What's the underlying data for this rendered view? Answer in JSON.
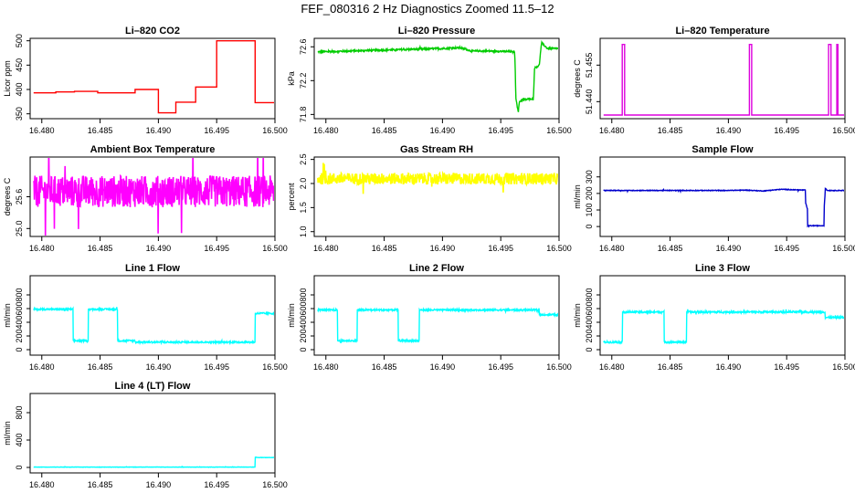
{
  "title": "FEF_080316  2 Hz Diagnostics Zoomed 11.5–12",
  "chart_data": [
    {
      "type": "line",
      "title": "Li–820 CO2",
      "ylabel": "Licor ppm",
      "color": "#ff0000",
      "xlim": [
        16.479,
        16.5
      ],
      "ylim": [
        340,
        505
      ],
      "xticks": [
        16.48,
        16.485,
        16.49,
        16.495,
        16.5
      ],
      "xtick_labels": [
        "16.480",
        "16.485",
        "16.490",
        "16.495",
        "16.500"
      ],
      "yticks": [
        350,
        400,
        450,
        500
      ],
      "ytick_labels": [
        "350",
        "400",
        "450",
        "500"
      ],
      "noise": 0,
      "series": [
        {
          "x": [
            16.4793,
            16.4812,
            16.4812,
            16.4828,
            16.4828,
            16.4848,
            16.4848,
            16.488,
            16.488,
            16.49,
            16.49,
            16.4915,
            16.4915,
            16.4932,
            16.4932,
            16.495,
            16.495,
            16.4983,
            16.4983,
            16.5
          ],
          "y": [
            393,
            393,
            395,
            395,
            396,
            396,
            393,
            393,
            400,
            400,
            352,
            352,
            374,
            374,
            405,
            405,
            500,
            500,
            373,
            373
          ]
        }
      ]
    },
    {
      "type": "line",
      "title": "Li–820 Pressure",
      "ylabel": "kPa",
      "color": "#00cc00",
      "xlim": [
        16.479,
        16.5
      ],
      "ylim": [
        71.75,
        72.7
      ],
      "xticks": [
        16.48,
        16.485,
        16.49,
        16.495,
        16.5
      ],
      "xtick_labels": [
        "16.480",
        "16.485",
        "16.490",
        "16.495",
        "16.500"
      ],
      "yticks": [
        71.8,
        72.2,
        72.6
      ],
      "ytick_labels": [
        "71.8",
        "72.2",
        "72.6"
      ],
      "noise": 0.01,
      "series": [
        {
          "x": [
            16.4793,
            16.49,
            16.4915,
            16.4925,
            16.4945,
            16.4962,
            16.4963,
            16.4965,
            16.4966,
            16.4968,
            16.4978,
            16.4979,
            16.4983,
            16.4985,
            16.499,
            16.5
          ],
          "y": [
            72.54,
            72.58,
            72.59,
            72.55,
            72.55,
            72.54,
            72.0,
            71.82,
            71.95,
            71.97,
            71.99,
            72.35,
            72.38,
            72.65,
            72.58,
            72.58
          ]
        }
      ]
    },
    {
      "type": "line",
      "title": "Li–820 Temperature",
      "ylabel": "degrees C",
      "color": "#dd00dd",
      "xlim": [
        16.479,
        16.5
      ],
      "ylim": [
        51.433,
        51.466
      ],
      "xticks": [
        16.48,
        16.485,
        16.49,
        16.495,
        16.5
      ],
      "xtick_labels": [
        "16.480",
        "16.485",
        "16.490",
        "16.495",
        "16.500"
      ],
      "yticks": [
        51.44,
        51.455
      ],
      "ytick_labels": [
        "51.440",
        "51.455"
      ],
      "noise": 0,
      "series": [
        {
          "x": [
            16.4793,
            16.4809,
            16.4809,
            16.4811,
            16.4811,
            16.4918,
            16.4918,
            16.492,
            16.492,
            16.4986,
            16.4986,
            16.4988,
            16.4988,
            16.4993,
            16.4993,
            16.4994,
            16.4994,
            16.5
          ],
          "y": [
            51.4345,
            51.4345,
            51.4635,
            51.4635,
            51.4345,
            51.4345,
            51.4635,
            51.4635,
            51.4345,
            51.4345,
            51.4635,
            51.4635,
            51.4345,
            51.4345,
            51.4635,
            51.4635,
            51.4345,
            51.4345
          ]
        }
      ]
    },
    {
      "type": "line",
      "title": "Ambient Box Temperature",
      "ylabel": "degrees C",
      "color": "#ff00ff",
      "xlim": [
        16.479,
        16.5
      ],
      "ylim": [
        24.85,
        26.35
      ],
      "xticks": [
        16.48,
        16.485,
        16.49,
        16.495,
        16.5
      ],
      "xtick_labels": [
        "16.480",
        "16.485",
        "16.490",
        "16.495",
        "16.500"
      ],
      "yticks": [
        25.0,
        25.6
      ],
      "ytick_labels": [
        "25.0",
        "25.6"
      ],
      "noise": 0.3,
      "series": [
        {
          "x": [
            16.4793,
            16.5
          ],
          "y": [
            25.7,
            25.7
          ]
        }
      ]
    },
    {
      "type": "line",
      "title": "Gas Stream RH",
      "ylabel": "percent",
      "color": "#ffff00",
      "xlim": [
        16.479,
        16.5
      ],
      "ylim": [
        0.9,
        2.55
      ],
      "xticks": [
        16.48,
        16.485,
        16.49,
        16.495,
        16.5
      ],
      "xtick_labels": [
        "16.480",
        "16.485",
        "16.490",
        "16.495",
        "16.500"
      ],
      "yticks": [
        1.0,
        1.5,
        2.0,
        2.5
      ],
      "ytick_labels": [
        "1.0",
        "1.5",
        "2.0",
        "2.5"
      ],
      "noise": 0.12,
      "series": [
        {
          "x": [
            16.4793,
            16.5
          ],
          "y": [
            2.1,
            2.1
          ]
        }
      ]
    },
    {
      "type": "line",
      "title": "Sample Flow",
      "ylabel": "ml/min",
      "color": "#0000cc",
      "xlim": [
        16.479,
        16.5
      ],
      "ylim": [
        -60,
        420
      ],
      "xticks": [
        16.48,
        16.485,
        16.49,
        16.495,
        16.5
      ],
      "xtick_labels": [
        "16.480",
        "16.485",
        "16.490",
        "16.495",
        "16.500"
      ],
      "yticks": [
        0,
        100,
        200,
        300
      ],
      "ytick_labels": [
        "0",
        "100",
        "200",
        "300"
      ],
      "noise": 2,
      "series": [
        {
          "x": [
            16.4793,
            16.49,
            16.4915,
            16.493,
            16.4945,
            16.4966,
            16.4966,
            16.4968,
            16.4968,
            16.4982,
            16.4982,
            16.4983,
            16.4983,
            16.4985,
            16.5
          ],
          "y": [
            218,
            218,
            220,
            215,
            225,
            220,
            150,
            100,
            5,
            5,
            100,
            200,
            230,
            218,
            218
          ]
        }
      ]
    },
    {
      "type": "line",
      "title": "Line 1 Flow",
      "ylabel": "ml/min",
      "color": "#00ffff",
      "xlim": [
        16.479,
        16.5
      ],
      "ylim": [
        -80,
        1080
      ],
      "xticks": [
        16.48,
        16.485,
        16.49,
        16.495,
        16.5
      ],
      "xtick_labels": [
        "16.480",
        "16.485",
        "16.490",
        "16.495",
        "16.500"
      ],
      "yticks": [
        0,
        200,
        400,
        600,
        800
      ],
      "ytick_labels": [
        "0",
        "200",
        "400",
        "600",
        "800"
      ],
      "noise": 12,
      "series": [
        {
          "x": [
            16.4793,
            16.4827,
            16.4827,
            16.484,
            16.484,
            16.4865,
            16.4865,
            16.488,
            16.488,
            16.4983,
            16.4983,
            16.5
          ],
          "y": [
            590,
            590,
            130,
            130,
            590,
            590,
            130,
            130,
            110,
            110,
            530,
            530
          ]
        }
      ]
    },
    {
      "type": "line",
      "title": "Line 2 Flow",
      "ylabel": "ml/min",
      "color": "#00ffff",
      "xlim": [
        16.479,
        16.5
      ],
      "ylim": [
        -80,
        1080
      ],
      "xticks": [
        16.48,
        16.485,
        16.49,
        16.495,
        16.5
      ],
      "xtick_labels": [
        "16.480",
        "16.485",
        "16.490",
        "16.495",
        "16.500"
      ],
      "yticks": [
        0,
        200,
        400,
        600,
        800
      ],
      "ytick_labels": [
        "0",
        "200",
        "400",
        "600",
        "800"
      ],
      "noise": 12,
      "series": [
        {
          "x": [
            16.4793,
            16.481,
            16.481,
            16.4827,
            16.4827,
            16.4862,
            16.4862,
            16.488,
            16.488,
            16.4983,
            16.4983,
            16.5
          ],
          "y": [
            580,
            580,
            130,
            130,
            580,
            580,
            130,
            130,
            580,
            580,
            510,
            510
          ]
        }
      ]
    },
    {
      "type": "line",
      "title": "Line 3 Flow",
      "ylabel": "ml/min",
      "color": "#00ffff",
      "xlim": [
        16.479,
        16.5
      ],
      "ylim": [
        -80,
        1080
      ],
      "xticks": [
        16.48,
        16.485,
        16.49,
        16.495,
        16.5
      ],
      "xtick_labels": [
        "16.480",
        "16.485",
        "16.490",
        "16.495",
        "16.500"
      ],
      "yticks": [
        0,
        200,
        400,
        600,
        800
      ],
      "ytick_labels": [
        "0",
        "200",
        "400",
        "600",
        "800"
      ],
      "noise": 14,
      "series": [
        {
          "x": [
            16.4793,
            16.4809,
            16.4809,
            16.4845,
            16.4845,
            16.4864,
            16.4864,
            16.4983,
            16.4983,
            16.5
          ],
          "y": [
            110,
            110,
            550,
            550,
            110,
            110,
            550,
            550,
            470,
            470
          ]
        }
      ]
    },
    {
      "type": "line",
      "title": "Line 4 (LT) Flow",
      "ylabel": "ml/min",
      "color": "#00ffff",
      "xlim": [
        16.479,
        16.5
      ],
      "ylim": [
        -80,
        1080
      ],
      "xticks": [
        16.48,
        16.485,
        16.49,
        16.495,
        16.5
      ],
      "xtick_labels": [
        "16.480",
        "16.485",
        "16.490",
        "16.495",
        "16.500"
      ],
      "yticks": [
        0,
        400,
        800
      ],
      "ytick_labels": [
        "0",
        "400",
        "800"
      ],
      "noise": 2,
      "series": [
        {
          "x": [
            16.4793,
            16.4983,
            16.4983,
            16.4985,
            16.5
          ],
          "y": [
            5,
            5,
            150,
            145,
            145
          ]
        }
      ]
    }
  ]
}
